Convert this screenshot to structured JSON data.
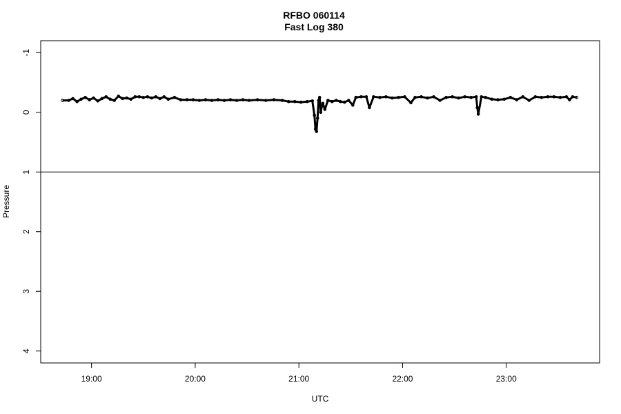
{
  "chart_data": {
    "type": "scatter",
    "title": "RFBO 060114",
    "subtitle": "Fast Log 380",
    "xlabel": "UTC",
    "ylabel": "Pressure",
    "x_ticks": [
      {
        "value": 19.0,
        "label": "19:00"
      },
      {
        "value": 20.0,
        "label": "20:00"
      },
      {
        "value": 21.0,
        "label": "21:00"
      },
      {
        "value": 22.0,
        "label": "22:00"
      },
      {
        "value": 23.0,
        "label": "23:00"
      }
    ],
    "y_ticks": [
      {
        "value": -1,
        "label": "-1"
      },
      {
        "value": 0,
        "label": "0"
      },
      {
        "value": 1,
        "label": "1"
      },
      {
        "value": 2,
        "label": "2"
      },
      {
        "value": 3,
        "label": "3"
      },
      {
        "value": 4,
        "label": "4"
      }
    ],
    "xlim": [
      18.51,
      23.9
    ],
    "ylim": [
      -1.2,
      4.2
    ],
    "y_reversed": true,
    "reference_line": {
      "y": 1
    },
    "grid": false,
    "series": [
      {
        "values": [
          [
            18.72,
            -0.2
          ],
          [
            18.78,
            -0.2
          ],
          [
            18.82,
            -0.23
          ],
          [
            18.86,
            -0.18
          ],
          [
            18.9,
            -0.22
          ],
          [
            18.94,
            -0.25
          ],
          [
            18.98,
            -0.21
          ],
          [
            19.02,
            -0.24
          ],
          [
            19.06,
            -0.19
          ],
          [
            19.1,
            -0.23
          ],
          [
            19.14,
            -0.26
          ],
          [
            19.18,
            -0.22
          ],
          [
            19.22,
            -0.2
          ],
          [
            19.26,
            -0.27
          ],
          [
            19.3,
            -0.23
          ],
          [
            19.34,
            -0.24
          ],
          [
            19.38,
            -0.22
          ],
          [
            19.42,
            -0.26
          ],
          [
            19.46,
            -0.26
          ],
          [
            19.5,
            -0.25
          ],
          [
            19.54,
            -0.26
          ],
          [
            19.58,
            -0.24
          ],
          [
            19.62,
            -0.26
          ],
          [
            19.66,
            -0.23
          ],
          [
            19.7,
            -0.26
          ],
          [
            19.74,
            -0.22
          ],
          [
            19.8,
            -0.25
          ],
          [
            19.86,
            -0.21
          ],
          [
            19.92,
            -0.21
          ],
          [
            19.98,
            -0.21
          ],
          [
            20.04,
            -0.2
          ],
          [
            20.1,
            -0.21
          ],
          [
            20.16,
            -0.2
          ],
          [
            20.22,
            -0.21
          ],
          [
            20.28,
            -0.2
          ],
          [
            20.34,
            -0.21
          ],
          [
            20.4,
            -0.2
          ],
          [
            20.46,
            -0.21
          ],
          [
            20.52,
            -0.2
          ],
          [
            20.6,
            -0.21
          ],
          [
            20.68,
            -0.2
          ],
          [
            20.76,
            -0.21
          ],
          [
            20.84,
            -0.2
          ],
          [
            20.9,
            -0.18
          ],
          [
            20.96,
            -0.18
          ],
          [
            21.02,
            -0.17
          ],
          [
            21.08,
            -0.18
          ],
          [
            21.13,
            -0.19
          ],
          [
            21.15,
            0.05
          ],
          [
            21.16,
            0.28
          ],
          [
            21.17,
            0.32
          ],
          [
            21.18,
            0.1
          ],
          [
            21.19,
            -0.2
          ],
          [
            21.2,
            -0.25
          ],
          [
            21.21,
            0.0
          ],
          [
            21.22,
            -0.1
          ],
          [
            21.23,
            -0.15
          ],
          [
            21.25,
            -0.05
          ],
          [
            21.28,
            -0.2
          ],
          [
            21.32,
            -0.18
          ],
          [
            21.36,
            -0.2
          ],
          [
            21.4,
            -0.18
          ],
          [
            21.44,
            -0.17
          ],
          [
            21.48,
            -0.2
          ],
          [
            21.52,
            -0.12
          ],
          [
            21.55,
            -0.25
          ],
          [
            21.6,
            -0.26
          ],
          [
            21.65,
            -0.26
          ],
          [
            21.68,
            -0.08
          ],
          [
            21.72,
            -0.26
          ],
          [
            21.78,
            -0.25
          ],
          [
            21.84,
            -0.26
          ],
          [
            21.9,
            -0.24
          ],
          [
            21.96,
            -0.25
          ],
          [
            22.02,
            -0.26
          ],
          [
            22.08,
            -0.16
          ],
          [
            22.12,
            -0.25
          ],
          [
            22.18,
            -0.26
          ],
          [
            22.24,
            -0.24
          ],
          [
            22.3,
            -0.26
          ],
          [
            22.36,
            -0.2
          ],
          [
            22.42,
            -0.25
          ],
          [
            22.48,
            -0.26
          ],
          [
            22.54,
            -0.24
          ],
          [
            22.6,
            -0.26
          ],
          [
            22.66,
            -0.25
          ],
          [
            22.71,
            -0.26
          ],
          [
            22.72,
            -0.08
          ],
          [
            22.73,
            0.03
          ],
          [
            22.76,
            -0.26
          ],
          [
            22.8,
            -0.25
          ],
          [
            22.86,
            -0.22
          ],
          [
            22.92,
            -0.21
          ],
          [
            22.98,
            -0.22
          ],
          [
            23.04,
            -0.25
          ],
          [
            23.1,
            -0.21
          ],
          [
            23.16,
            -0.26
          ],
          [
            23.22,
            -0.2
          ],
          [
            23.28,
            -0.26
          ],
          [
            23.34,
            -0.25
          ],
          [
            23.4,
            -0.26
          ],
          [
            23.46,
            -0.26
          ],
          [
            23.52,
            -0.25
          ],
          [
            23.58,
            -0.26
          ],
          [
            23.61,
            -0.21
          ],
          [
            23.64,
            -0.26
          ],
          [
            23.68,
            -0.25
          ]
        ]
      }
    ]
  }
}
